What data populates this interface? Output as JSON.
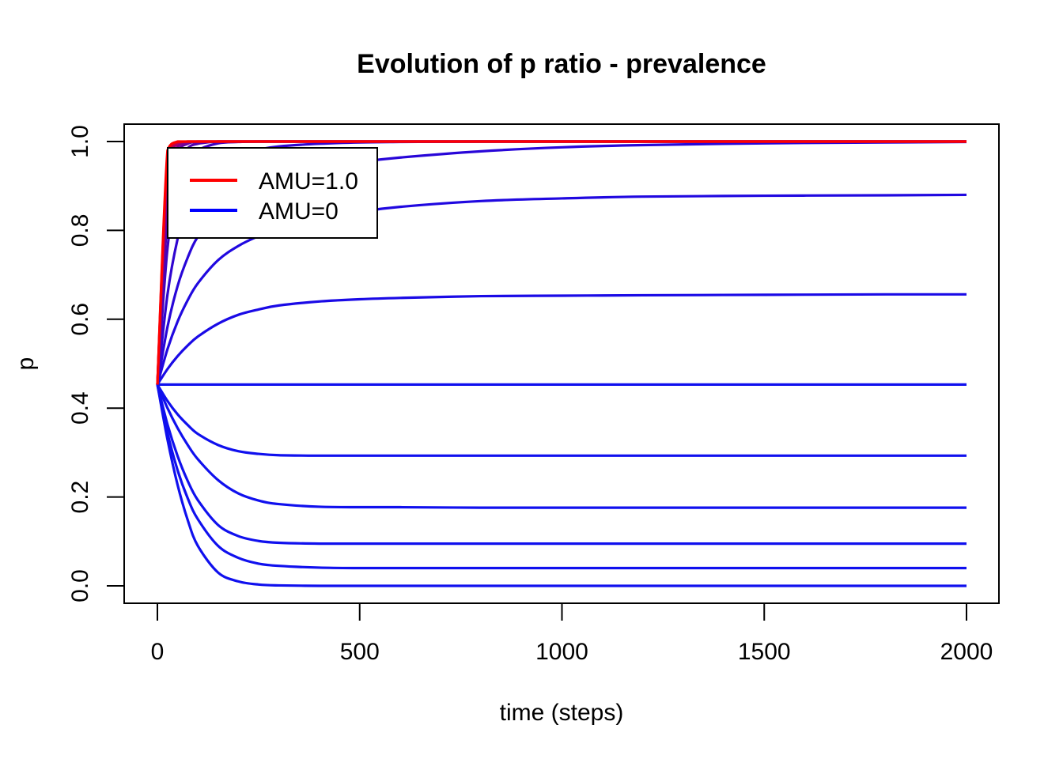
{
  "chart_data": {
    "type": "line",
    "title": "Evolution of p ratio - prevalence",
    "xlabel": "time (steps)",
    "ylabel": "p",
    "xlim": [
      0,
      2000
    ],
    "ylim": [
      0.0,
      1.0
    ],
    "xticks": [
      0,
      500,
      1000,
      1500,
      2000
    ],
    "xtick_labels": [
      "0",
      "500",
      "1000",
      "1500",
      "2000"
    ],
    "yticks": [
      0.0,
      0.2,
      0.4,
      0.6,
      0.8,
      1.0
    ],
    "ytick_labels": [
      "0.0",
      "0.2",
      "0.4",
      "0.6",
      "0.8",
      "1.0"
    ],
    "grid": false,
    "legend": {
      "position": "top-left",
      "entries": [
        {
          "label": "AMU=1.0",
          "color": "#ff0000"
        },
        {
          "label": "AMU=0",
          "color": "#0000ff"
        }
      ]
    },
    "x": [
      0,
      25,
      50,
      75,
      100,
      150,
      200,
      250,
      300,
      400,
      500,
      600,
      800,
      1000,
      1200,
      1500,
      1800,
      2000
    ],
    "series": [
      {
        "color": "#1010ee",
        "values": [
          0.453,
          0.329,
          0.227,
          0.148,
          0.09,
          0.03,
          0.01,
          0.003,
          0.001,
          0.0,
          0.0,
          0.0,
          0.0,
          0.0,
          0.0,
          0.0,
          0.0,
          0.0
        ]
      },
      {
        "color": "#1010ee",
        "values": [
          0.453,
          0.344,
          0.26,
          0.197,
          0.15,
          0.09,
          0.063,
          0.05,
          0.045,
          0.041,
          0.04,
          0.04,
          0.04,
          0.04,
          0.04,
          0.04,
          0.04,
          0.04
        ]
      },
      {
        "color": "#1010ee",
        "values": [
          0.453,
          0.363,
          0.292,
          0.236,
          0.193,
          0.137,
          0.112,
          0.101,
          0.097,
          0.095,
          0.095,
          0.095,
          0.095,
          0.095,
          0.095,
          0.095,
          0.095,
          0.095
        ]
      },
      {
        "color": "#1010ee",
        "values": [
          0.453,
          0.4,
          0.355,
          0.317,
          0.285,
          0.238,
          0.208,
          0.192,
          0.184,
          0.178,
          0.177,
          0.177,
          0.176,
          0.176,
          0.176,
          0.176,
          0.176,
          0.176
        ]
      },
      {
        "color": "#1010ee",
        "values": [
          0.453,
          0.416,
          0.386,
          0.362,
          0.342,
          0.317,
          0.303,
          0.297,
          0.294,
          0.293,
          0.293,
          0.293,
          0.293,
          0.293,
          0.293,
          0.293,
          0.293,
          0.293
        ]
      },
      {
        "color": "#1010ee",
        "values": [
          0.453,
          0.453,
          0.453,
          0.453,
          0.453,
          0.453,
          0.453,
          0.453,
          0.453,
          0.453,
          0.453,
          0.453,
          0.453,
          0.453,
          0.453,
          0.453,
          0.453,
          0.453
        ]
      },
      {
        "color": "#1a0ae6",
        "values": [
          0.453,
          0.488,
          0.517,
          0.541,
          0.561,
          0.59,
          0.61,
          0.622,
          0.631,
          0.64,
          0.645,
          0.648,
          0.652,
          0.653,
          0.654,
          0.655,
          0.656,
          0.656
        ]
      },
      {
        "color": "#2008e0",
        "values": [
          0.453,
          0.533,
          0.595,
          0.643,
          0.681,
          0.733,
          0.765,
          0.787,
          0.803,
          0.826,
          0.842,
          0.853,
          0.866,
          0.872,
          0.876,
          0.878,
          0.879,
          0.88
        ]
      },
      {
        "color": "#2806d8",
        "values": [
          0.453,
          0.583,
          0.675,
          0.739,
          0.786,
          0.847,
          0.882,
          0.904,
          0.919,
          0.94,
          0.954,
          0.964,
          0.978,
          0.987,
          0.992,
          0.996,
          0.998,
          0.999
        ]
      },
      {
        "color": "#3005d0",
        "values": [
          0.453,
          0.656,
          0.781,
          0.857,
          0.903,
          0.95,
          0.97,
          0.982,
          0.989,
          0.995,
          0.998,
          0.999,
          1.0,
          1.0,
          1.0,
          1.0,
          1.0,
          1.0
        ]
      },
      {
        "color": "#4004c0",
        "values": [
          0.453,
          0.76,
          0.897,
          0.955,
          0.98,
          0.996,
          0.999,
          1.0,
          1.0,
          1.0,
          1.0,
          1.0,
          1.0,
          1.0,
          1.0,
          1.0,
          1.0,
          1.0
        ]
      },
      {
        "color": "#5003b0",
        "values": [
          0.453,
          0.83,
          0.95,
          0.985,
          0.995,
          1.0,
          1.0,
          1.0,
          1.0,
          1.0,
          1.0,
          1.0,
          1.0,
          1.0,
          1.0,
          1.0,
          1.0,
          1.0
        ]
      },
      {
        "color": "#6802a0",
        "values": [
          0.453,
          0.88,
          0.975,
          0.995,
          0.999,
          1.0,
          1.0,
          1.0,
          1.0,
          1.0,
          1.0,
          1.0,
          1.0,
          1.0,
          1.0,
          1.0,
          1.0,
          1.0
        ]
      },
      {
        "color": "#800290",
        "values": [
          0.453,
          0.915,
          0.988,
          0.998,
          1.0,
          1.0,
          1.0,
          1.0,
          1.0,
          1.0,
          1.0,
          1.0,
          1.0,
          1.0,
          1.0,
          1.0,
          1.0,
          1.0
        ]
      },
      {
        "color": "#a00170",
        "values": [
          0.453,
          0.945,
          0.995,
          1.0,
          1.0,
          1.0,
          1.0,
          1.0,
          1.0,
          1.0,
          1.0,
          1.0,
          1.0,
          1.0,
          1.0,
          1.0,
          1.0,
          1.0
        ]
      },
      {
        "color": "#c80040",
        "values": [
          0.453,
          0.965,
          0.998,
          1.0,
          1.0,
          1.0,
          1.0,
          1.0,
          1.0,
          1.0,
          1.0,
          1.0,
          1.0,
          1.0,
          1.0,
          1.0,
          1.0,
          1.0
        ]
      },
      {
        "color": "#ff0000",
        "values": [
          0.453,
          0.98,
          1.0,
          1.0,
          1.0,
          1.0,
          1.0,
          1.0,
          1.0,
          1.0,
          1.0,
          1.0,
          1.0,
          1.0,
          1.0,
          1.0,
          1.0,
          1.0
        ]
      }
    ]
  }
}
